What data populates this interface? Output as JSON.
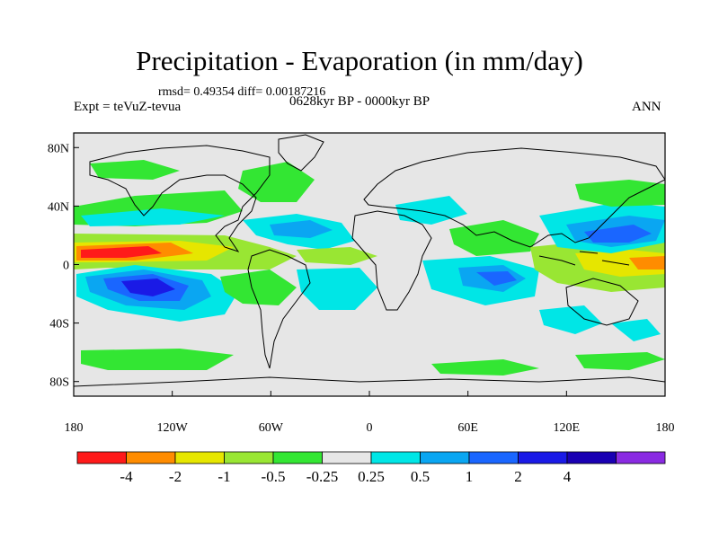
{
  "title": "Precipitation - Evaporation (in mm/day)",
  "stats_line": "rmsd= 0.49354  diff= 0.00187216",
  "experiment_label": "Expt = teVuZ-tevua",
  "period_label": "0628kyr BP - 0000kyr BP",
  "season_label": "ANN",
  "map": {
    "lat_ticks": [
      "80N",
      "40N",
      "0",
      "40S",
      "80S"
    ],
    "lon_ticks": [
      "180",
      "120W",
      "60W",
      "0",
      "60E",
      "120E",
      "180"
    ],
    "background_color": "#e6e6e6",
    "land_outline_color": "#000000"
  },
  "colorbar": {
    "colors": [
      "#ff1a1a",
      "#ff8c00",
      "#e6e600",
      "#99e633",
      "#33e633",
      "#e6e6e6",
      "#00e6e6",
      "#0aa6f2",
      "#1a66ff",
      "#1a1ae6",
      "#1a00b3",
      "#8a2be2"
    ],
    "labels": [
      "-4",
      "-2",
      "-1",
      "-0.5",
      "-0.25",
      "0.25",
      "0.5",
      "1",
      "2",
      "4"
    ]
  }
}
